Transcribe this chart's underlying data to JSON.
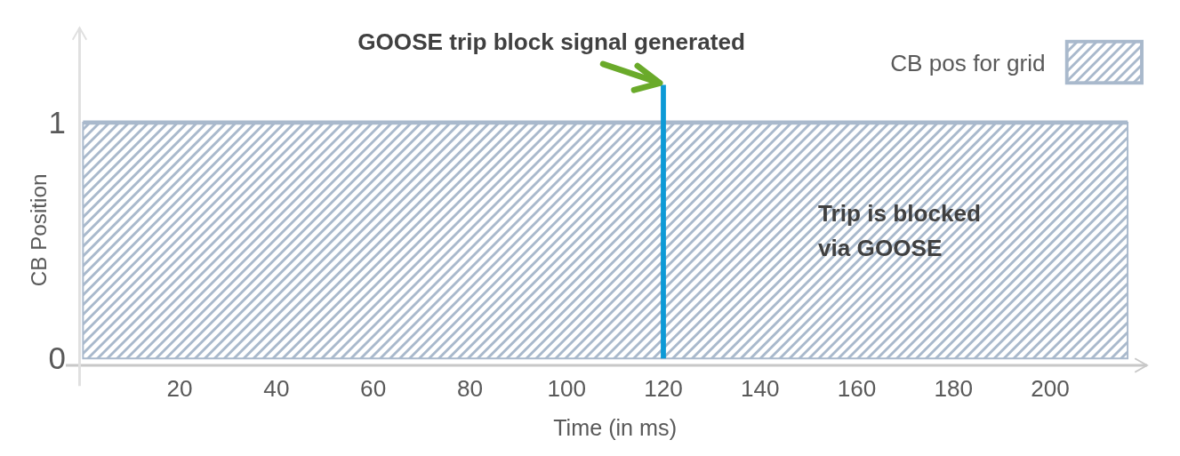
{
  "chart_data": {
    "type": "area",
    "xlabel": "Time (in ms)",
    "ylabel": "CB Position",
    "series": [
      {
        "name": "CB pos for grid",
        "color": "#a9b9cc",
        "x": [
          0,
          216
        ],
        "values": [
          1,
          1
        ]
      }
    ],
    "xlim": [
      0,
      220
    ],
    "xticks": [
      20,
      40,
      60,
      80,
      100,
      120,
      140,
      160,
      180,
      200
    ],
    "ylim": [
      0,
      1.38
    ],
    "yticks": [
      0,
      1
    ],
    "ref_lines": [
      {
        "axis": "x",
        "value": 120,
        "color": "#0d9ad6"
      }
    ],
    "annotations": [
      {
        "text": "GOOSE trip block signal generated",
        "x": 120,
        "y": 1.16
      },
      "Trip is blocked via GOOSE"
    ],
    "legend": "top right",
    "grid": false
  }
}
